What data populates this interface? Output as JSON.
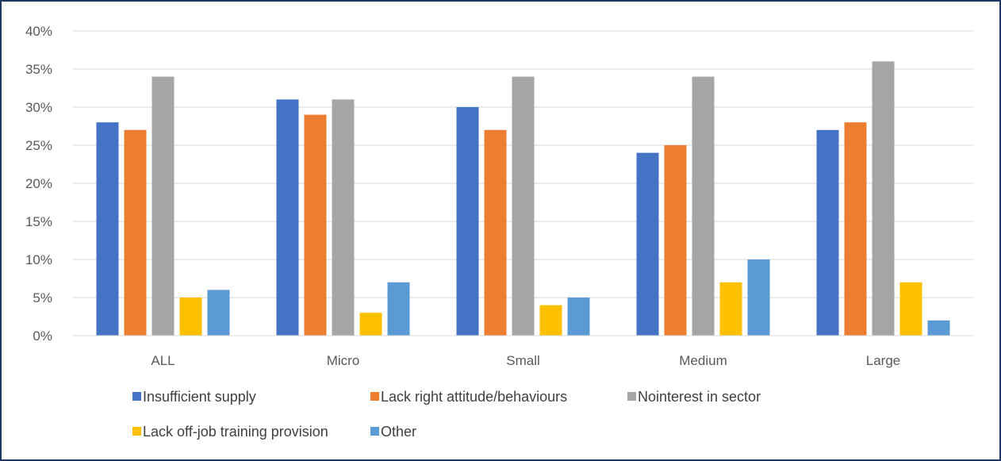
{
  "chart_data": {
    "type": "bar",
    "categories": [
      "ALL",
      "Micro",
      "Small",
      "Medium",
      "Large"
    ],
    "series": [
      {
        "name": "Insufficient supply",
        "color": "#4472c4",
        "values": [
          28,
          31,
          30,
          24,
          27
        ]
      },
      {
        "name": "Lack right attitude/behaviours",
        "color": "#ed7d31",
        "values": [
          27,
          29,
          27,
          25,
          28
        ]
      },
      {
        "name": "Nointerest in sector",
        "color": "#a5a5a5",
        "values": [
          34,
          31,
          34,
          34,
          36
        ]
      },
      {
        "name": "Lack off-job training provision",
        "color": "#ffc000",
        "values": [
          5,
          3,
          4,
          7,
          7
        ]
      },
      {
        "name": "Other",
        "color": "#5b9bd5",
        "values": [
          6,
          7,
          5,
          10,
          2
        ]
      }
    ],
    "y_ticks": [
      "0%",
      "5%",
      "10%",
      "15%",
      "20%",
      "25%",
      "30%",
      "35%",
      "40%"
    ],
    "ylim": [
      0,
      40
    ],
    "grid": true,
    "legend": "bottom"
  }
}
